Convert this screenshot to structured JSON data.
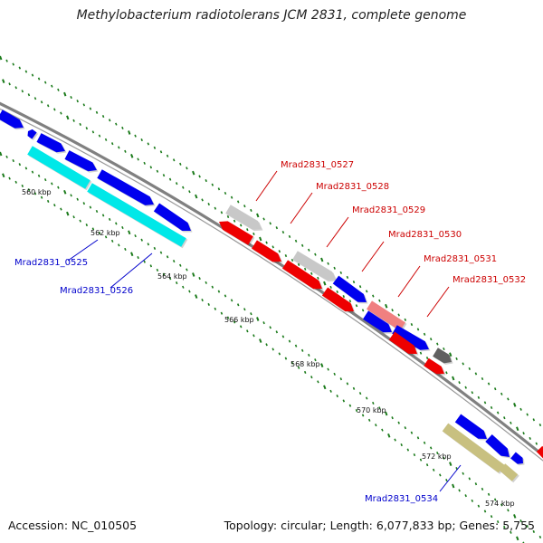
{
  "header": {
    "title": "Methylobacterium radiotolerans JCM 2831, complete genome"
  },
  "footer": {
    "accession": "Accession: NC_010505",
    "summary": "Topology: circular; Length: 6,077,833 bp; Genes: 5,755"
  },
  "map": {
    "colors": {
      "backbone": "#808080",
      "tick": "#1a7a1a",
      "label_forward": "#cc0000",
      "label_reverse": "#0000cc"
    },
    "scale_labels": [
      "560 kbp",
      "562 kbp",
      "564 kbp",
      "566 kbp",
      "568 kbp",
      "570 kbp",
      "572 kbp",
      "574 kbp"
    ],
    "gene_labels": {
      "g0525": "Mrad2831_0525",
      "g0526": "Mrad2831_0526",
      "g0527": "Mrad2831_0527",
      "g0528": "Mrad2831_0528",
      "g0529": "Mrad2831_0529",
      "g0530": "Mrad2831_0530",
      "g0531": "Mrad2831_0531",
      "g0532": "Mrad2831_0532",
      "g0534": "Mrad2831_0534"
    }
  }
}
